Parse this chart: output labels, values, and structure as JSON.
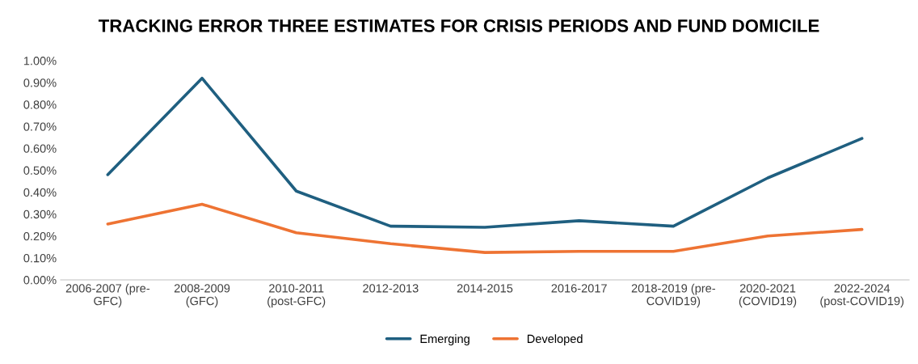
{
  "chart_data": {
    "type": "line",
    "title": "TRACKING ERROR THREE ESTIMATES FOR CRISIS PERIODS AND FUND DOMICILE",
    "categories": [
      "2006-2007 (pre-\nGFC)",
      "2008-2009\n(GFC)",
      "2010-2011\n(post-GFC)",
      "2012-2013",
      "2014-2015",
      "2016-2017",
      "2018-2019 (pre-\nCOVID19)",
      "2020-2021\n(COVID19)",
      "2022-2024\n(post-COVID19)"
    ],
    "series": [
      {
        "name": "Emerging",
        "color": "#1f5f80",
        "values": [
          0.48,
          0.92,
          0.405,
          0.245,
          0.24,
          0.27,
          0.245,
          0.465,
          0.645
        ]
      },
      {
        "name": "Developed",
        "color": "#ee7333",
        "values": [
          0.255,
          0.345,
          0.215,
          0.165,
          0.125,
          0.13,
          0.13,
          0.2,
          0.23
        ]
      }
    ],
    "ylim": [
      0,
      1.0
    ],
    "yticks": [
      {
        "value": 0,
        "label": "0.00%"
      },
      {
        "value": 0.1,
        "label": "0.10%"
      },
      {
        "value": 0.2,
        "label": "0.20%"
      },
      {
        "value": 0.3,
        "label": "0.30%"
      },
      {
        "value": 0.4,
        "label": "0.40%"
      },
      {
        "value": 0.5,
        "label": "0.50%"
      },
      {
        "value": 0.6,
        "label": "0.60%"
      },
      {
        "value": 0.7,
        "label": "0.70%"
      },
      {
        "value": 0.8,
        "label": "0.80%"
      },
      {
        "value": 0.9,
        "label": "0.90%"
      },
      {
        "value": 1.0,
        "label": "1.00%"
      }
    ],
    "grid": false,
    "legend": "bottom",
    "marker": "none",
    "line_style": "solid"
  }
}
